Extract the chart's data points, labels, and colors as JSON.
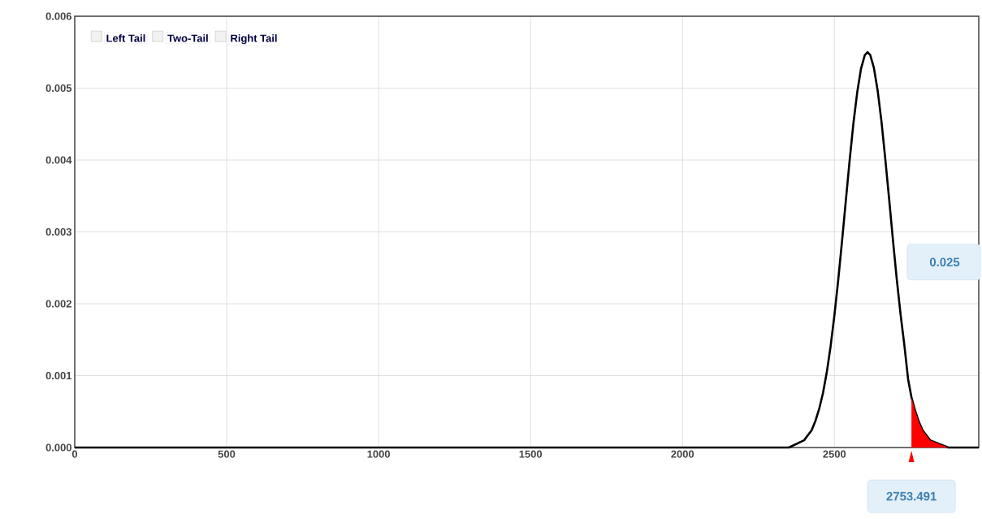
{
  "chart_data": {
    "type": "line",
    "series": [
      {
        "color": "#000000",
        "x": [
          0,
          2350,
          2400,
          2425,
          2437.5,
          2450,
          2462.5,
          2475,
          2487.5,
          2500,
          2512.5,
          2525,
          2537.5,
          2550,
          2562.5,
          2575,
          2587.5,
          2600,
          2609,
          2618,
          2630,
          2642.5,
          2655,
          2667.5,
          2680,
          2692.5,
          2705,
          2717.5,
          2730,
          2742.5,
          2753.491,
          2765,
          2777.5,
          2790,
          2815,
          2875,
          2975
        ],
        "values": [
          0,
          0,
          0.0001,
          0.00024,
          0.00037,
          0.00054,
          0.00076,
          0.00105,
          0.00141,
          0.00184,
          0.00233,
          0.00287,
          0.00343,
          0.00399,
          0.00451,
          0.00494,
          0.00527,
          0.00546,
          0.0055,
          0.00546,
          0.00528,
          0.00496,
          0.00453,
          0.00401,
          0.00346,
          0.00289,
          0.00235,
          0.00186,
          0.00143,
          0.00095,
          0.0007,
          0.00052,
          0.00036,
          0.00024,
          0.0001,
          0,
          0
        ]
      },
      {
        "type": "area",
        "color": "#ff0000",
        "x": [
          2753.491,
          2765,
          2777.5,
          2790,
          2815,
          2875,
          2975
        ],
        "values": [
          0.0007,
          0.00052,
          0.00036,
          0.00024,
          0.0001,
          0,
          0
        ]
      }
    ],
    "xlim": [
      0,
      2975
    ],
    "ylim": [
      0,
      0.006
    ],
    "xticks": [
      0,
      500,
      1000,
      1500,
      2000,
      2500
    ],
    "yticks": [
      {
        "value": 0,
        "label": "0.000"
      },
      {
        "value": 0.001,
        "label": "0.001"
      },
      {
        "value": 0.002,
        "label": "0.002"
      },
      {
        "value": 0.003,
        "label": "0.003"
      },
      {
        "value": 0.004,
        "label": "0.004"
      },
      {
        "value": 0.005,
        "label": "0.005"
      },
      {
        "value": 0.006,
        "label": "0.006"
      }
    ],
    "grid": true,
    "annotations": [
      "Left Tail",
      "Two-Tail",
      "Right Tail",
      "0.025",
      "2753.491"
    ]
  }
}
